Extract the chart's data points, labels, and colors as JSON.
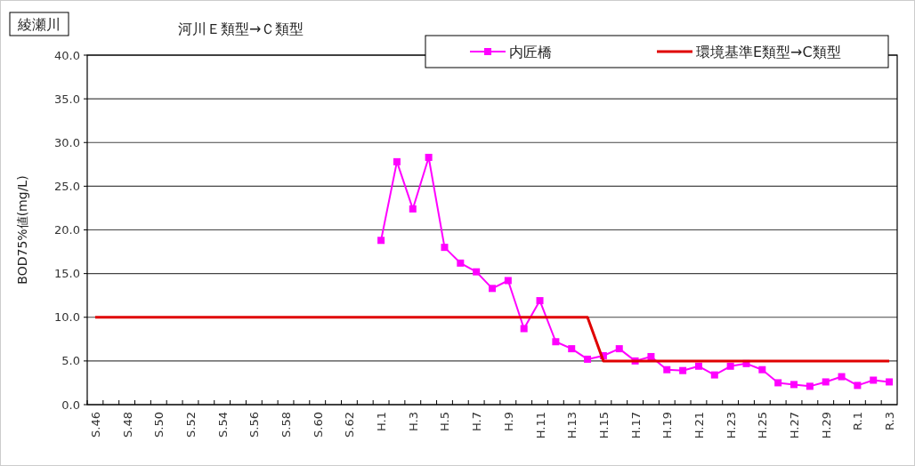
{
  "chart_data": {
    "type": "line",
    "title": "綾瀬川",
    "subtitle": "河川Ｅ類型→Ｃ類型",
    "ylabel": "BOD75%値(mg/L)",
    "categories": [
      "S.46",
      null,
      "S.48",
      null,
      "S.50",
      null,
      "S.52",
      null,
      "S.54",
      null,
      "S.56",
      null,
      "S.58",
      null,
      "S.60",
      null,
      "S.62",
      null,
      "H.1",
      null,
      "H.3",
      null,
      "H.5",
      null,
      "H.7",
      null,
      "H.9",
      null,
      "H.11",
      null,
      "H.13",
      null,
      "H.15",
      null,
      "H.17",
      null,
      "H.19",
      null,
      "H.21",
      null,
      "H.23",
      null,
      "H.25",
      null,
      "H.27",
      null,
      "H.29",
      null,
      "R.1",
      null,
      "R.3"
    ],
    "series": [
      {
        "name": "内匠橋",
        "color": "#ff00ff",
        "marker": "square",
        "values": [
          null,
          null,
          null,
          null,
          null,
          null,
          null,
          null,
          null,
          null,
          null,
          null,
          null,
          null,
          null,
          null,
          null,
          null,
          18.8,
          27.8,
          22.4,
          28.3,
          18.0,
          16.2,
          15.2,
          13.3,
          14.2,
          8.7,
          11.9,
          7.2,
          6.4,
          5.2,
          5.6,
          6.4,
          5.0,
          5.5,
          4.0,
          3.9,
          4.4,
          3.4,
          4.4,
          4.7,
          4.0,
          2.5,
          2.3,
          2.1,
          2.6,
          3.2,
          2.2,
          2.8,
          2.6
        ]
      },
      {
        "name": "環境基準E類型→C類型",
        "color": "#e00000",
        "marker": "none",
        "values": [
          10,
          10,
          10,
          10,
          10,
          10,
          10,
          10,
          10,
          10,
          10,
          10,
          10,
          10,
          10,
          10,
          10,
          10,
          10,
          10,
          10,
          10,
          10,
          10,
          10,
          10,
          10,
          10,
          10,
          10,
          10,
          10,
          5,
          5,
          5,
          5,
          5,
          5,
          5,
          5,
          5,
          5,
          5,
          5,
          5,
          5,
          5,
          5,
          5,
          5,
          5
        ]
      }
    ],
    "ylim": [
      0,
      40
    ],
    "yticks": [
      {
        "value": 0,
        "label": "0.0"
      },
      {
        "value": 5,
        "label": "5.0"
      },
      {
        "value": 10,
        "label": "10.0"
      },
      {
        "value": 15,
        "label": "15.0"
      },
      {
        "value": 20,
        "label": "20.0"
      },
      {
        "value": 25,
        "label": "25.0"
      },
      {
        "value": 30,
        "label": "30.0"
      },
      {
        "value": 35,
        "label": "35.0"
      },
      {
        "value": 40,
        "label": "40.0"
      }
    ],
    "grid": "y",
    "legend": "top right",
    "line_style": "solid"
  }
}
